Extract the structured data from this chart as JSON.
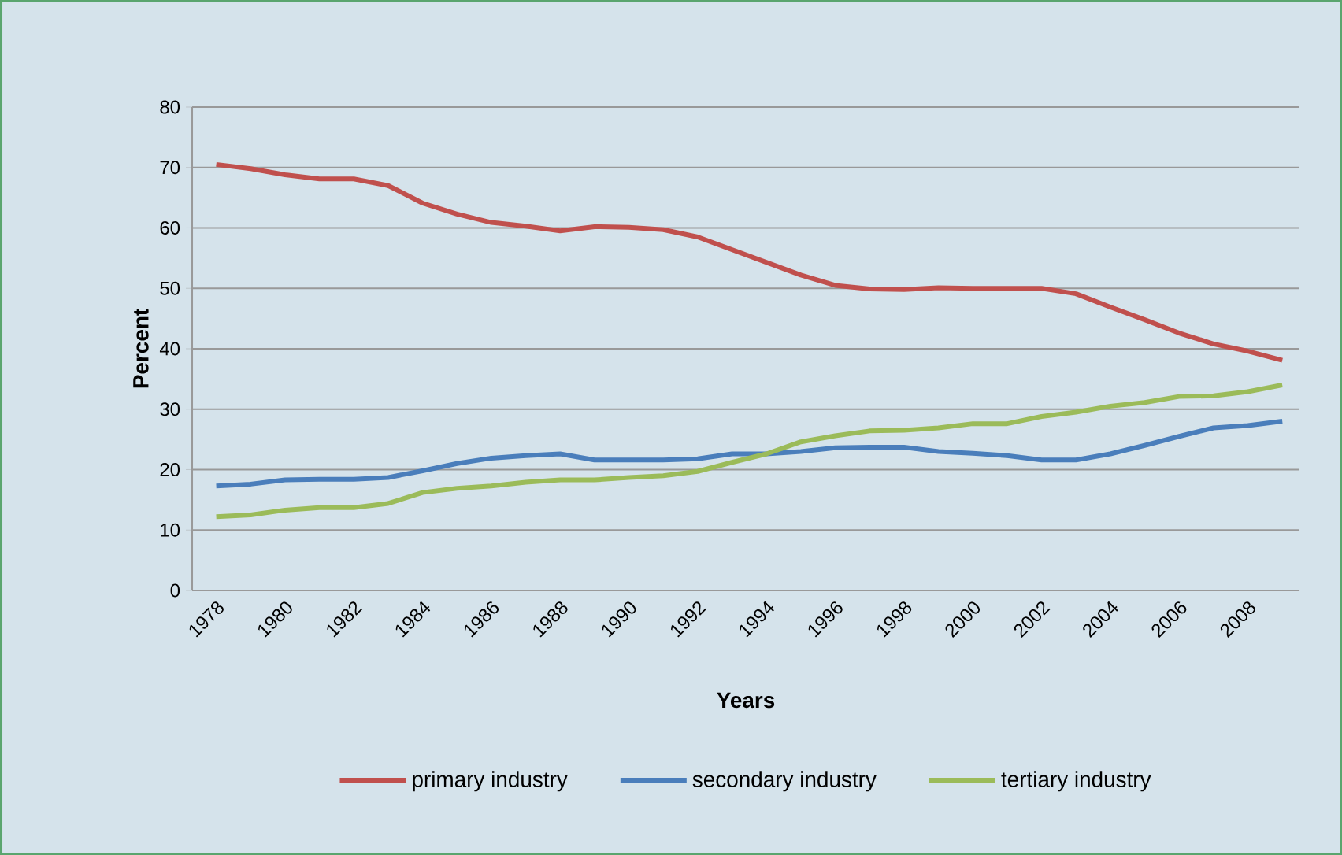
{
  "chart_data": {
    "type": "line",
    "xlabel": "Years",
    "ylabel": "Percent",
    "x": [
      1978,
      1979,
      1980,
      1981,
      1982,
      1983,
      1984,
      1985,
      1986,
      1987,
      1988,
      1989,
      1990,
      1991,
      1992,
      1993,
      1994,
      1995,
      1996,
      1997,
      1998,
      1999,
      2000,
      2001,
      2002,
      2003,
      2004,
      2005,
      2006,
      2007,
      2008,
      2009
    ],
    "series": [
      {
        "name": "primary industry",
        "color": "#c0504d",
        "values": [
          70.5,
          69.8,
          68.8,
          68.1,
          68.1,
          67.0,
          64.1,
          62.3,
          60.9,
          60.3,
          59.5,
          60.2,
          60.1,
          59.7,
          58.5,
          56.4,
          54.3,
          52.2,
          50.5,
          49.9,
          49.8,
          50.1,
          50.0,
          50.0,
          50.0,
          49.1,
          46.9,
          44.8,
          42.6,
          40.8,
          39.6,
          38.1
        ]
      },
      {
        "name": "secondary industry",
        "color": "#4a7ebb",
        "values": [
          17.3,
          17.6,
          18.3,
          18.4,
          18.4,
          18.7,
          19.8,
          21.0,
          21.9,
          22.3,
          22.6,
          21.6,
          21.6,
          21.6,
          21.8,
          22.6,
          22.6,
          23.0,
          23.6,
          23.7,
          23.7,
          23.0,
          22.7,
          22.3,
          21.6,
          21.6,
          22.6,
          24.0,
          25.5,
          26.9,
          27.3,
          28.0
        ]
      },
      {
        "name": "tertiary industry",
        "color": "#9bbb59",
        "values": [
          12.2,
          12.5,
          13.3,
          13.7,
          13.7,
          14.4,
          16.2,
          16.9,
          17.3,
          17.9,
          18.3,
          18.3,
          18.7,
          19.0,
          19.7,
          21.2,
          22.6,
          24.6,
          25.6,
          26.4,
          26.5,
          26.9,
          27.6,
          27.6,
          28.8,
          29.5,
          30.5,
          31.1,
          32.1,
          32.2,
          32.9,
          34.0
        ]
      }
    ],
    "xlim": [
      1977.3,
      2009.5
    ],
    "xticks": [
      1978,
      1980,
      1982,
      1984,
      1986,
      1988,
      1990,
      1992,
      1994,
      1996,
      1998,
      2000,
      2002,
      2004,
      2006,
      2008
    ],
    "ylim": [
      0,
      80
    ],
    "yticks": [
      0,
      10,
      20,
      30,
      40,
      50,
      60,
      70,
      80
    ],
    "grid": "y",
    "legend": "bottom",
    "line_style": "solid"
  }
}
